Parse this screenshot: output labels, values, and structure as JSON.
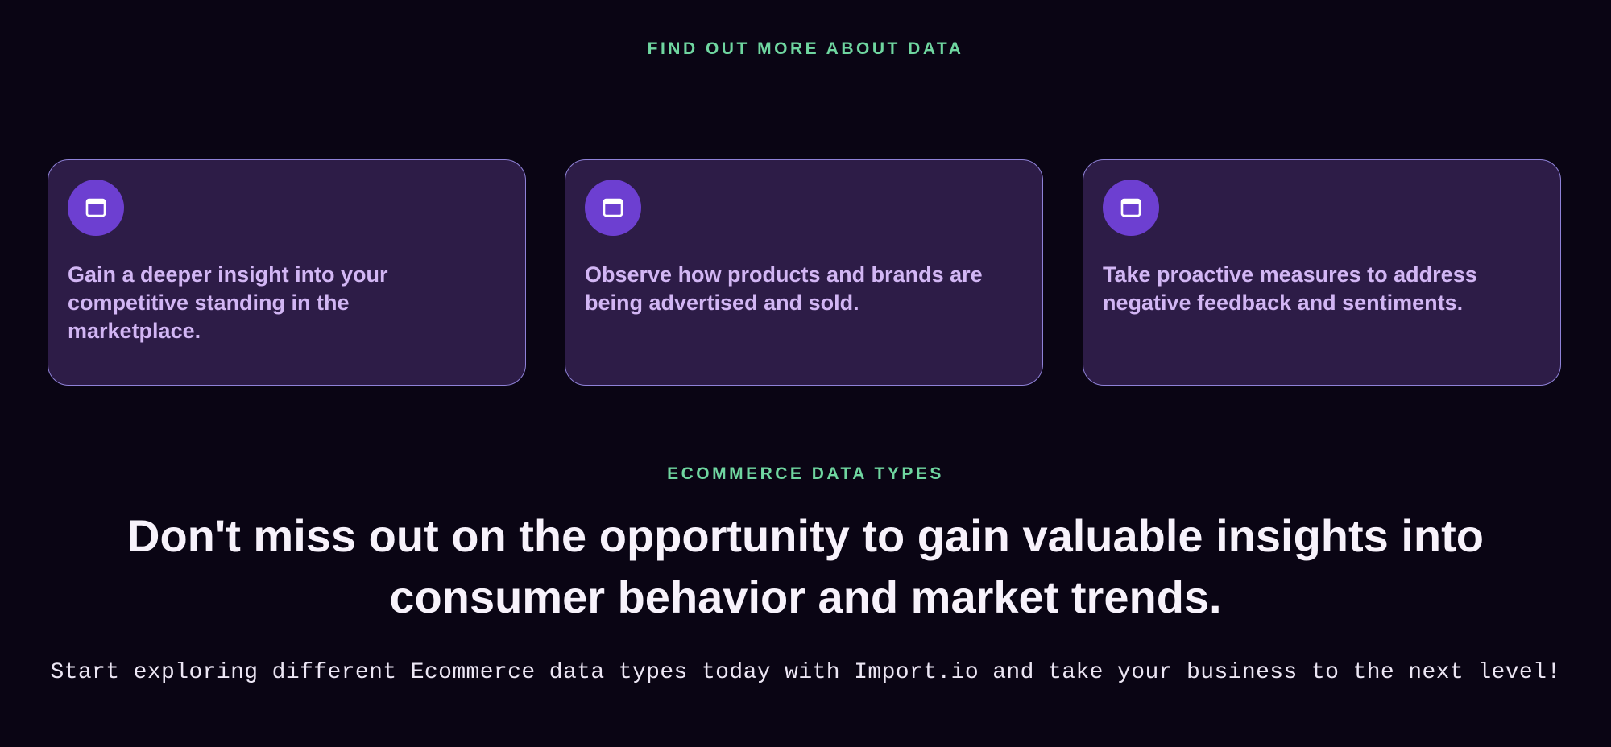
{
  "section1": {
    "eyebrow": "FIND OUT MORE ABOUT DATA",
    "cards": [
      {
        "icon": "browser-window-icon",
        "text": "Gain a deeper insight into your competitive standing in the marketplace."
      },
      {
        "icon": "browser-window-icon",
        "text": "Observe how products and brands are being advertised and sold."
      },
      {
        "icon": "browser-window-icon",
        "text": "Take proactive measures to address negative feedback and sentiments."
      }
    ]
  },
  "section2": {
    "eyebrow": "ECOMMERCE DATA TYPES",
    "heading": "Don't miss out on the opportunity to gain valuable insights into consumer behavior and market trends.",
    "subtext": "Start exploring different Ecommerce data types today with Import.io and take your business to the next level!"
  },
  "colors": {
    "background": "#0a0514",
    "accent_green": "#6fd6a0",
    "card_bg": "#2d1c47",
    "icon_bg": "#6d3fd1",
    "card_text": "#d2b6f4"
  }
}
